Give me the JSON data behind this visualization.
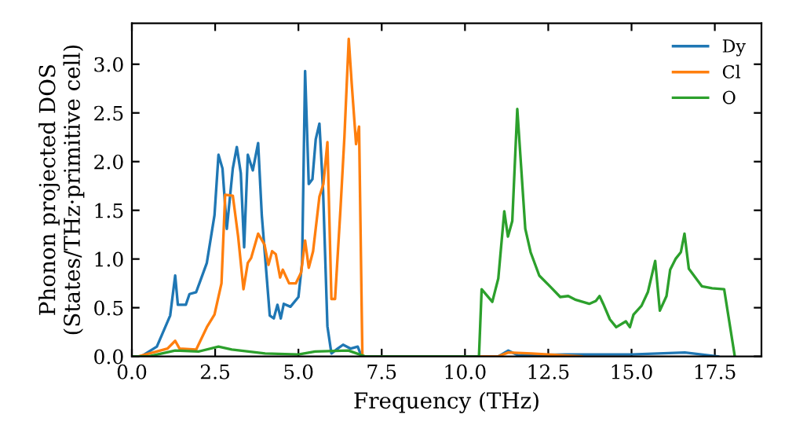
{
  "chart_data": {
    "type": "line",
    "xlabel": "Frequency (THz)",
    "ylabel": "Phonon projected DOS\n(States/THz·primitive cell)",
    "xlim": [
      0,
      18.9
    ],
    "ylim": [
      0,
      3.42
    ],
    "xticks": [
      {
        "value": 0,
        "label": "0.0"
      },
      2.5,
      {
        "value": 5,
        "label": "5.0"
      },
      7.5,
      {
        "value": 10,
        "label": "10.0"
      },
      12.5,
      {
        "value": 15,
        "label": "15.0"
      },
      17.5
    ],
    "yticks": [
      {
        "value": 0,
        "label": "0.0"
      },
      0.5,
      {
        "value": 1,
        "label": "1.0"
      },
      1.5,
      {
        "value": 2,
        "label": "2.0"
      },
      2.5,
      {
        "value": 3,
        "label": "3.0"
      }
    ],
    "grid": false,
    "legend": "top right",
    "series": [
      {
        "name": "Dy",
        "color": "#1f77b4",
        "x": [
          0,
          0.28,
          0.75,
          1.15,
          1.3,
          1.38,
          1.62,
          1.73,
          1.93,
          2.25,
          2.48,
          2.6,
          2.72,
          2.85,
          3.03,
          3.15,
          3.27,
          3.37,
          3.48,
          3.63,
          3.79,
          3.9,
          4.14,
          4.26,
          4.37,
          4.47,
          4.56,
          4.76,
          5.0,
          5.11,
          5.2,
          5.31,
          5.42,
          5.52,
          5.63,
          5.74,
          5.87,
          5.99,
          6.18,
          6.34,
          6.57,
          6.78,
          6.86,
          6.95,
          11.0,
          11.3,
          11.6,
          13.0,
          15.0,
          16.6,
          17.6
        ],
        "values": [
          0,
          0,
          0.1,
          0.42,
          0.83,
          0.53,
          0.53,
          0.64,
          0.66,
          0.96,
          1.45,
          2.07,
          1.93,
          1.31,
          1.93,
          2.15,
          1.88,
          1.12,
          2.07,
          1.91,
          2.19,
          1.45,
          0.42,
          0.39,
          0.53,
          0.39,
          0.54,
          0.51,
          0.61,
          0.96,
          2.93,
          1.77,
          1.82,
          2.23,
          2.39,
          1.7,
          0.31,
          0.03,
          0.08,
          0.12,
          0.08,
          0.1,
          0.03,
          0,
          0,
          0.06,
          0.01,
          0.02,
          0.02,
          0.04,
          0
        ]
      },
      {
        "name": "Cl",
        "color": "#ff7f0e",
        "x": [
          0,
          0.2,
          1.07,
          1.3,
          1.43,
          1.93,
          2.25,
          2.48,
          2.69,
          2.8,
          3.03,
          3.19,
          3.35,
          3.48,
          3.58,
          3.79,
          3.98,
          4.1,
          4.21,
          4.32,
          4.45,
          4.53,
          4.72,
          4.92,
          5.08,
          5.2,
          5.31,
          5.44,
          5.63,
          5.75,
          5.87,
          5.99,
          6.1,
          6.26,
          6.38,
          6.51,
          6.6,
          6.73,
          6.82,
          6.92,
          11.0,
          11.3,
          12.0,
          13.0,
          13.5
        ],
        "values": [
          0,
          0,
          0.08,
          0.16,
          0.08,
          0.07,
          0.3,
          0.43,
          0.75,
          1.66,
          1.65,
          1.23,
          0.69,
          0.96,
          1.01,
          1.26,
          1.15,
          0.94,
          1.08,
          1.05,
          0.81,
          0.89,
          0.75,
          0.75,
          0.86,
          1.19,
          0.91,
          1.08,
          1.64,
          1.77,
          2.2,
          0.59,
          0.59,
          1.5,
          2.25,
          3.26,
          2.8,
          2.18,
          2.36,
          0,
          0,
          0.04,
          0.03,
          0.01,
          0
        ]
      },
      {
        "name": "O",
        "color": "#2ca02c",
        "x": [
          0,
          0.5,
          1.3,
          2.0,
          2.6,
          3.0,
          4.0,
          5.0,
          5.5,
          6.5,
          7.0,
          10.42,
          10.5,
          10.82,
          11.0,
          11.18,
          11.29,
          11.42,
          11.57,
          11.81,
          11.97,
          12.23,
          12.55,
          12.86,
          13.1,
          13.33,
          13.73,
          13.93,
          14.04,
          14.15,
          14.35,
          14.54,
          14.83,
          14.95,
          15.06,
          15.3,
          15.49,
          15.71,
          15.85,
          16.05,
          16.16,
          16.32,
          16.48,
          16.59,
          16.72,
          17.11,
          17.42,
          17.78,
          18.1
        ],
        "values": [
          0,
          0,
          0.06,
          0.05,
          0.1,
          0.07,
          0.03,
          0.02,
          0.05,
          0.06,
          0,
          0,
          0.69,
          0.56,
          0.8,
          1.49,
          1.23,
          1.39,
          2.54,
          1.31,
          1.07,
          0.83,
          0.72,
          0.61,
          0.62,
          0.58,
          0.54,
          0.57,
          0.62,
          0.54,
          0.38,
          0.3,
          0.36,
          0.3,
          0.43,
          0.52,
          0.66,
          0.98,
          0.47,
          0.62,
          0.89,
          1.0,
          1.07,
          1.26,
          0.9,
          0.72,
          0.7,
          0.69,
          0
        ]
      }
    ]
  }
}
